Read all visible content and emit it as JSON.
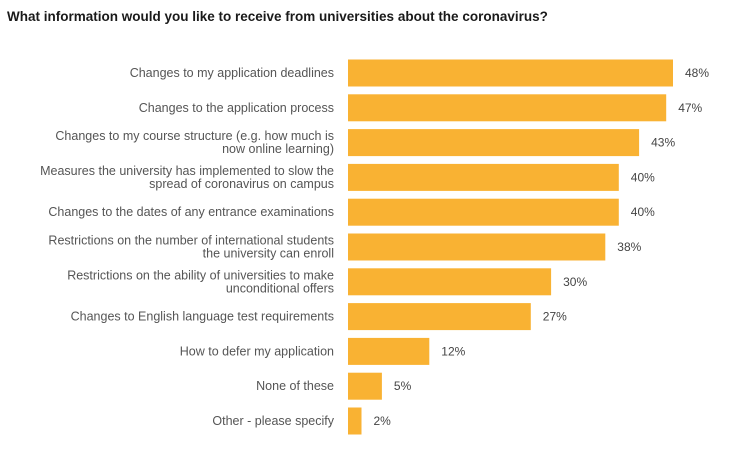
{
  "chart_data": {
    "type": "bar",
    "orientation": "horizontal",
    "title": "What information would you like to receive from universities about the coronavirus?",
    "categories": [
      [
        "Changes to my application deadlines"
      ],
      [
        "Changes to the application process"
      ],
      [
        "Changes to my course structure (e.g. how much is",
        "now online learning)"
      ],
      [
        "Measures the university has implemented to slow the",
        "spread of coronavirus on campus"
      ],
      [
        "Changes to the dates of any entrance examinations"
      ],
      [
        "Restrictions on the number of international students",
        "the university can enroll"
      ],
      [
        "Restrictions on the ability of universities to make",
        "unconditional offers"
      ],
      [
        "Changes to English language test requirements"
      ],
      [
        "How to defer my application"
      ],
      [
        "None of these"
      ],
      [
        "Other - please specify"
      ]
    ],
    "values": [
      48,
      47,
      43,
      40,
      40,
      38,
      30,
      27,
      12,
      5,
      2
    ],
    "value_labels": [
      "48%",
      "47%",
      "43%",
      "40%",
      "40%",
      "38%",
      "30%",
      "27%",
      "12%",
      "5%",
      "2%"
    ],
    "xlim": [
      0,
      48
    ],
    "grid": false,
    "bar_color": "#F9B233"
  }
}
